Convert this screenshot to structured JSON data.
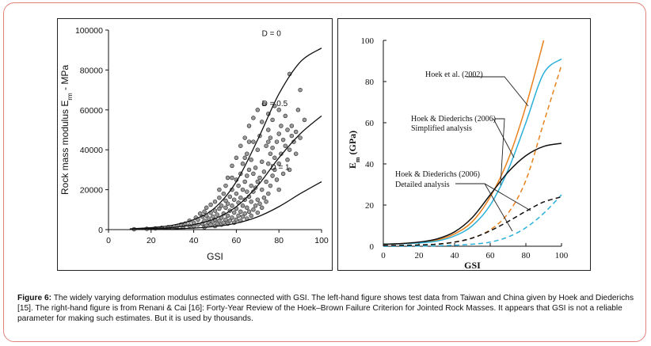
{
  "caption": {
    "label": "Figure 6:",
    "text": "The widely varying deformation modulus estimates connected with GSI. The left-hand figure shows test data from Taiwan and China given by Hoek and Diederichs [15]. The right-hand figure is from Renani & Cai [16]: Forty-Year Review of the Hoek–Brown Failure Criterion for Jointed Rock Masses. It appears that GSI is not a reliable parameter for making such estimates. But it is used by thousands."
  },
  "chart_data": [
    {
      "type": "scatter",
      "xlabel": "GSI",
      "ylabel": "Rock mass modulus E",
      "ylabel_sub": "rm",
      "ylabel_tail": " - MPa",
      "xlim": [
        0,
        100
      ],
      "ylim": [
        0,
        100000
      ],
      "x_ticks": [
        "0",
        "20",
        "40",
        "60",
        "80",
        "100"
      ],
      "y_ticks": [
        "0",
        "20000",
        "40000",
        "60000",
        "80000",
        "100000"
      ],
      "curve_labels": [
        "D = 0",
        "D = 0.5",
        "D = 1"
      ],
      "series": [
        {
          "name": "D = 0",
          "x": [
            10,
            20,
            30,
            40,
            50,
            60,
            70,
            80,
            90,
            100
          ],
          "y": [
            400,
            1000,
            2200,
            5000,
            11000,
            24000,
            45000,
            68000,
            84000,
            91000
          ]
        },
        {
          "name": "D = 0.5",
          "x": [
            10,
            20,
            30,
            40,
            50,
            60,
            70,
            80,
            90,
            100
          ],
          "y": [
            200,
            500,
            1100,
            2500,
            5500,
            11500,
            22000,
            36000,
            48000,
            57000
          ]
        },
        {
          "name": "D = 1",
          "x": [
            10,
            20,
            30,
            40,
            50,
            60,
            70,
            80,
            90,
            100
          ],
          "y": [
            100,
            200,
            400,
            800,
            1600,
            3200,
            6400,
            11500,
            18000,
            24000
          ]
        }
      ],
      "points": [
        [
          12,
          200
        ],
        [
          18,
          400
        ],
        [
          22,
          600
        ],
        [
          25,
          900
        ],
        [
          28,
          1200
        ],
        [
          30,
          800
        ],
        [
          32,
          1500
        ],
        [
          34,
          2500
        ],
        [
          35,
          1000
        ],
        [
          36,
          3000
        ],
        [
          38,
          2000
        ],
        [
          38,
          4500
        ],
        [
          40,
          1500
        ],
        [
          40,
          3500
        ],
        [
          41,
          6000
        ],
        [
          42,
          2500
        ],
        [
          42,
          5000
        ],
        [
          43,
          8000
        ],
        [
          44,
          3000
        ],
        [
          44,
          6500
        ],
        [
          45,
          1200
        ],
        [
          45,
          4500
        ],
        [
          45,
          9000
        ],
        [
          46,
          2000
        ],
        [
          46,
          7000
        ],
        [
          46,
          11000
        ],
        [
          47,
          3500
        ],
        [
          47,
          5500
        ],
        [
          48,
          2500
        ],
        [
          48,
          8500
        ],
        [
          48,
          12500
        ],
        [
          49,
          4000
        ],
        [
          49,
          6500
        ],
        [
          50,
          1800
        ],
        [
          50,
          5000
        ],
        [
          50,
          9500
        ],
        [
          50,
          14000
        ],
        [
          51,
          3000
        ],
        [
          51,
          7500
        ],
        [
          52,
          4500
        ],
        [
          52,
          10500
        ],
        [
          52,
          16000
        ],
        [
          53,
          2500
        ],
        [
          53,
          6000
        ],
        [
          53,
          12000
        ],
        [
          54,
          3500
        ],
        [
          54,
          8000
        ],
        [
          54,
          18000
        ],
        [
          55,
          5000
        ],
        [
          55,
          11000
        ],
        [
          55,
          14500
        ],
        [
          55,
          22000
        ],
        [
          56,
          3000
        ],
        [
          56,
          7000
        ],
        [
          56,
          13000
        ],
        [
          56,
          26000
        ],
        [
          57,
          4500
        ],
        [
          57,
          9500
        ],
        [
          57,
          16500
        ],
        [
          58,
          6000
        ],
        [
          58,
          12000
        ],
        [
          58,
          20000
        ],
        [
          58,
          32000
        ],
        [
          59,
          3500
        ],
        [
          59,
          8500
        ],
        [
          59,
          15000
        ],
        [
          60,
          5000
        ],
        [
          60,
          10500
        ],
        [
          60,
          18000
        ],
        [
          60,
          25000
        ],
        [
          60,
          36000
        ],
        [
          61,
          7000
        ],
        [
          61,
          13500
        ],
        [
          61,
          22000
        ],
        [
          62,
          4500
        ],
        [
          62,
          9000
        ],
        [
          62,
          16000
        ],
        [
          62,
          28000
        ],
        [
          62,
          42000
        ],
        [
          63,
          6500
        ],
        [
          63,
          12000
        ],
        [
          63,
          20000
        ],
        [
          63,
          33000
        ],
        [
          64,
          8000
        ],
        [
          64,
          15000
        ],
        [
          64,
          24000
        ],
        [
          64,
          46000
        ],
        [
          65,
          5500
        ],
        [
          65,
          11000
        ],
        [
          65,
          19000
        ],
        [
          65,
          27000
        ],
        [
          65,
          38000
        ],
        [
          66,
          9000
        ],
        [
          66,
          16500
        ],
        [
          66,
          30000
        ],
        [
          66,
          52000
        ],
        [
          67,
          7000
        ],
        [
          67,
          14000
        ],
        [
          67,
          22000
        ],
        [
          67,
          35000
        ],
        [
          68,
          10000
        ],
        [
          68,
          19000
        ],
        [
          68,
          28000
        ],
        [
          68,
          44000
        ],
        [
          68,
          56000
        ],
        [
          69,
          12000
        ],
        [
          69,
          21000
        ],
        [
          69,
          31000
        ],
        [
          70,
          8500
        ],
        [
          70,
          15000
        ],
        [
          70,
          24000
        ],
        [
          70,
          40000
        ],
        [
          70,
          60000
        ],
        [
          71,
          13000
        ],
        [
          71,
          26000
        ],
        [
          71,
          47000
        ],
        [
          72,
          11000
        ],
        [
          72,
          20000
        ],
        [
          72,
          34000
        ],
        [
          72,
          54000
        ],
        [
          73,
          16000
        ],
        [
          73,
          29000
        ],
        [
          73,
          63000
        ],
        [
          74,
          14000
        ],
        [
          74,
          24000
        ],
        [
          74,
          42000
        ],
        [
          75,
          18000
        ],
        [
          75,
          33000
        ],
        [
          75,
          50000
        ],
        [
          75,
          58000
        ],
        [
          76,
          22000
        ],
        [
          76,
          38000
        ],
        [
          76,
          46000
        ],
        [
          77,
          27000
        ],
        [
          77,
          41000
        ],
        [
          77,
          55000
        ],
        [
          78,
          30000
        ],
        [
          78,
          36000
        ],
        [
          78,
          62000
        ],
        [
          79,
          25000
        ],
        [
          79,
          44000
        ],
        [
          80,
          20000
        ],
        [
          80,
          33000
        ],
        [
          80,
          48000
        ],
        [
          80,
          60000
        ],
        [
          81,
          38000
        ],
        [
          81,
          52000
        ],
        [
          82,
          28000
        ],
        [
          82,
          45000
        ],
        [
          83,
          42000
        ],
        [
          83,
          57000
        ],
        [
          84,
          35000
        ],
        [
          84,
          50000
        ],
        [
          85,
          30000
        ],
        [
          85,
          40000
        ],
        [
          86,
          47000
        ],
        [
          86,
          52000
        ],
        [
          87,
          44000
        ],
        [
          88,
          38000
        ],
        [
          88,
          49000
        ],
        [
          89,
          60000
        ],
        [
          90,
          46000
        ],
        [
          90,
          70000
        ],
        [
          85,
          78000
        ],
        [
          92,
          55000
        ],
        [
          75,
          44000
        ],
        [
          66,
          44000
        ],
        [
          64,
          36000
        ],
        [
          58,
          26000
        ],
        [
          52,
          20000
        ]
      ]
    },
    {
      "type": "line",
      "xlabel": "GSI",
      "ylabel": "E",
      "ylabel_sub": "m",
      "ylabel_tail": " (GPa)",
      "xlim": [
        0,
        100
      ],
      "ylim": [
        0,
        100
      ],
      "x_ticks": [
        "0",
        "20",
        "40",
        "60",
        "80",
        "100"
      ],
      "y_ticks": [
        "0",
        "20",
        "40",
        "60",
        "80",
        "100"
      ],
      "annotations": [
        "Hoek et al. (2002)",
        "Hoek & Diederichs (2006)",
        "Simplified analysis",
        "Hoek & Diederichs (2006)",
        "Detailed analysis"
      ],
      "colors": {
        "black": "#111111",
        "orange": "#e8821e",
        "blue": "#2ab0d8"
      },
      "series": [
        {
          "color": "orange",
          "dash": false,
          "x": [
            0,
            10,
            20,
            30,
            40,
            50,
            60,
            70,
            80,
            90
          ],
          "y": [
            1.0,
            1.3,
            1.8,
            3.0,
            6.0,
            12.0,
            24.0,
            42.0,
            68.0,
            100.0
          ]
        },
        {
          "color": "orange",
          "dash": true,
          "x": [
            0,
            10,
            20,
            30,
            40,
            50,
            60,
            70,
            80,
            90,
            100
          ],
          "y": [
            0.3,
            0.4,
            0.6,
            1.0,
            2.0,
            4.0,
            8.0,
            16.0,
            32.0,
            60.0,
            88.0
          ]
        },
        {
          "color": "blue",
          "dash": false,
          "x": [
            0,
            10,
            20,
            30,
            40,
            50,
            60,
            70,
            80,
            90,
            100
          ],
          "y": [
            1.0,
            1.2,
            1.6,
            2.5,
            5.0,
            10.0,
            20.0,
            37.0,
            60.0,
            84.0,
            91.0
          ]
        },
        {
          "color": "blue",
          "dash": true,
          "x": [
            0,
            10,
            20,
            30,
            40,
            50,
            60,
            70,
            80,
            90,
            100
          ],
          "y": [
            0.0,
            0.0,
            0.1,
            0.2,
            0.5,
            1.0,
            2.0,
            4.5,
            9.0,
            16.0,
            25.0
          ]
        },
        {
          "color": "black",
          "dash": false,
          "x": [
            0,
            10,
            20,
            30,
            40,
            50,
            60,
            70,
            80,
            90,
            100
          ],
          "y": [
            1.0,
            1.3,
            2.0,
            3.5,
            7.0,
            14.0,
            25.0,
            36.0,
            44.0,
            48.5,
            50.0
          ]
        },
        {
          "color": "black",
          "dash": true,
          "x": [
            0,
            10,
            20,
            30,
            40,
            50,
            60,
            70,
            80,
            90,
            100
          ],
          "y": [
            0.3,
            0.4,
            0.6,
            1.0,
            2.0,
            4.0,
            7.5,
            12.0,
            17.0,
            21.5,
            24.0
          ]
        }
      ]
    }
  ]
}
